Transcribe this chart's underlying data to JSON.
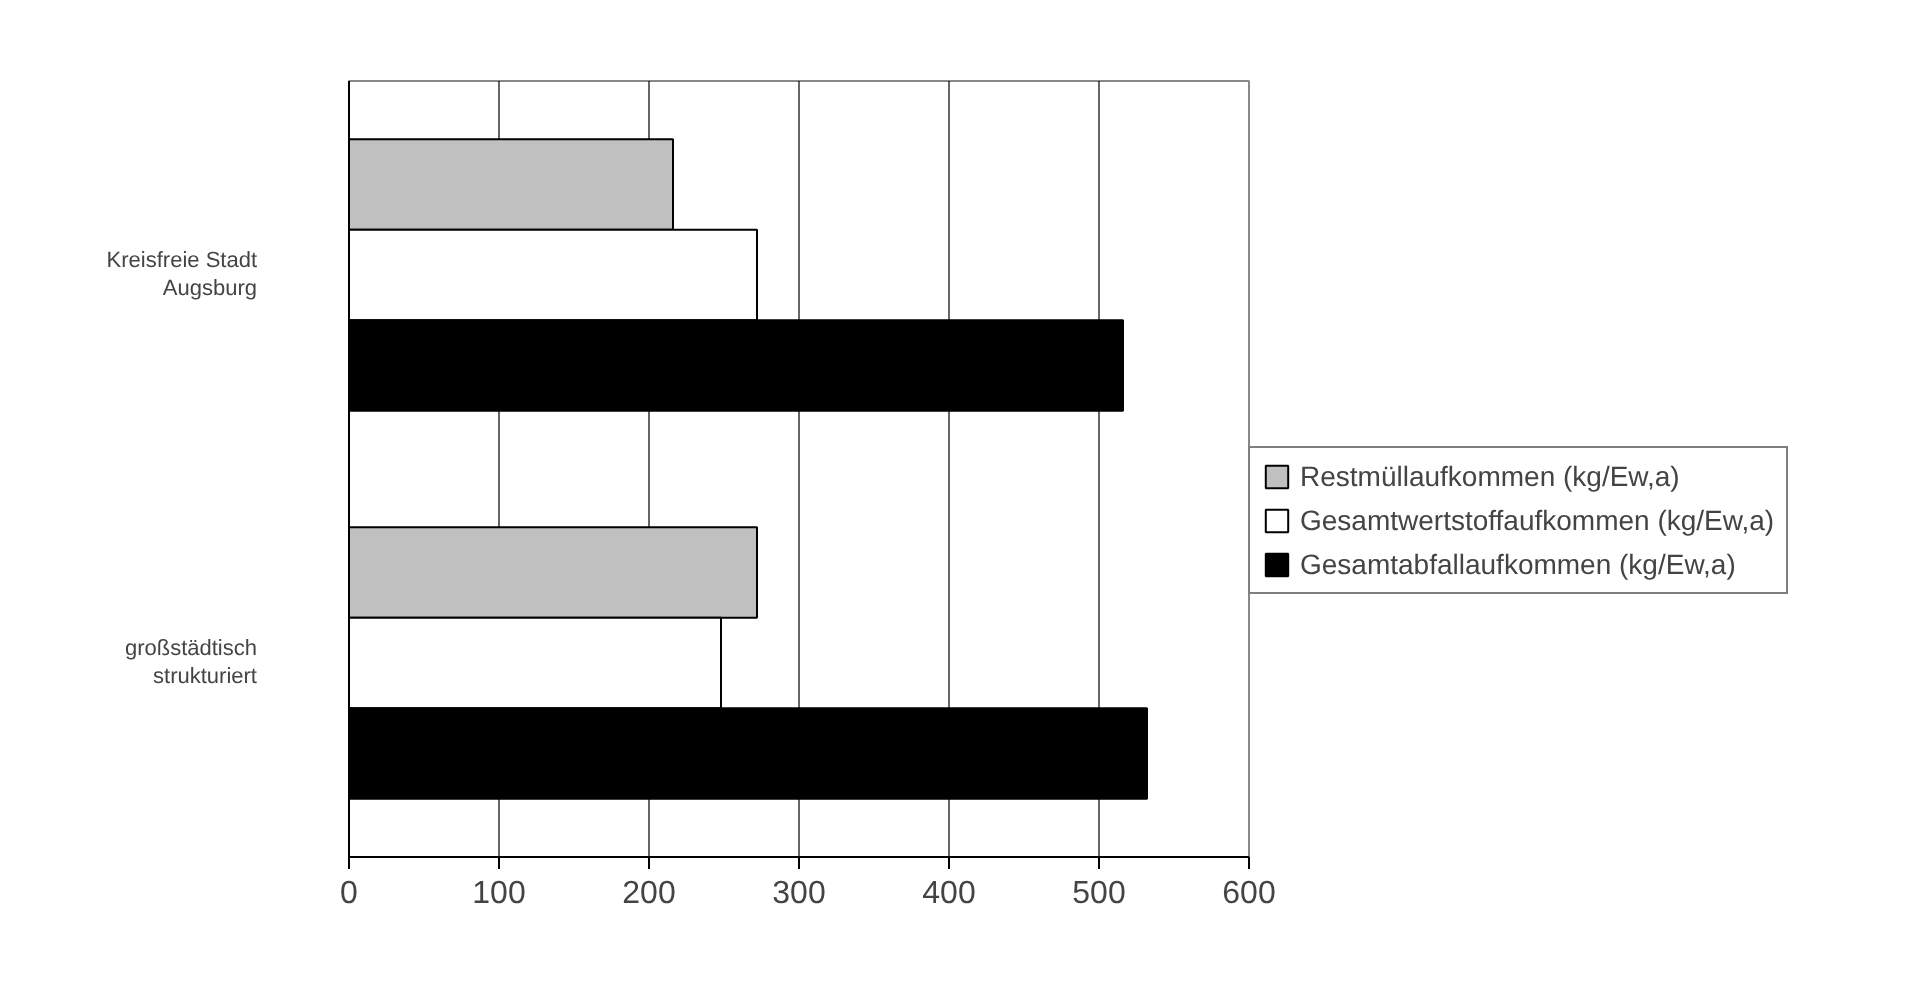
{
  "chart_data": {
    "type": "bar",
    "orientation": "horizontal",
    "categories": [
      "Kreisfreie Stadt\nAugsburg",
      "großstädtisch\nstrukturiert"
    ],
    "series": [
      {
        "name": "Restmüllaufkommen (kg/Ew,a)",
        "color": "#c0c0c0",
        "values": [
          216,
          272
        ]
      },
      {
        "name": "Gesamtwertstoffaufkommen (kg/Ew,a)",
        "color": "#ffffff",
        "values": [
          272,
          248
        ]
      },
      {
        "name": "Gesamtabfallaufkommen (kg/Ew,a)",
        "color": "#000000",
        "values": [
          516,
          532
        ]
      }
    ],
    "xlim": [
      0,
      600
    ],
    "xticks": [
      0,
      100,
      200,
      300,
      400,
      500,
      600
    ],
    "grid": "x",
    "legend": "right"
  }
}
